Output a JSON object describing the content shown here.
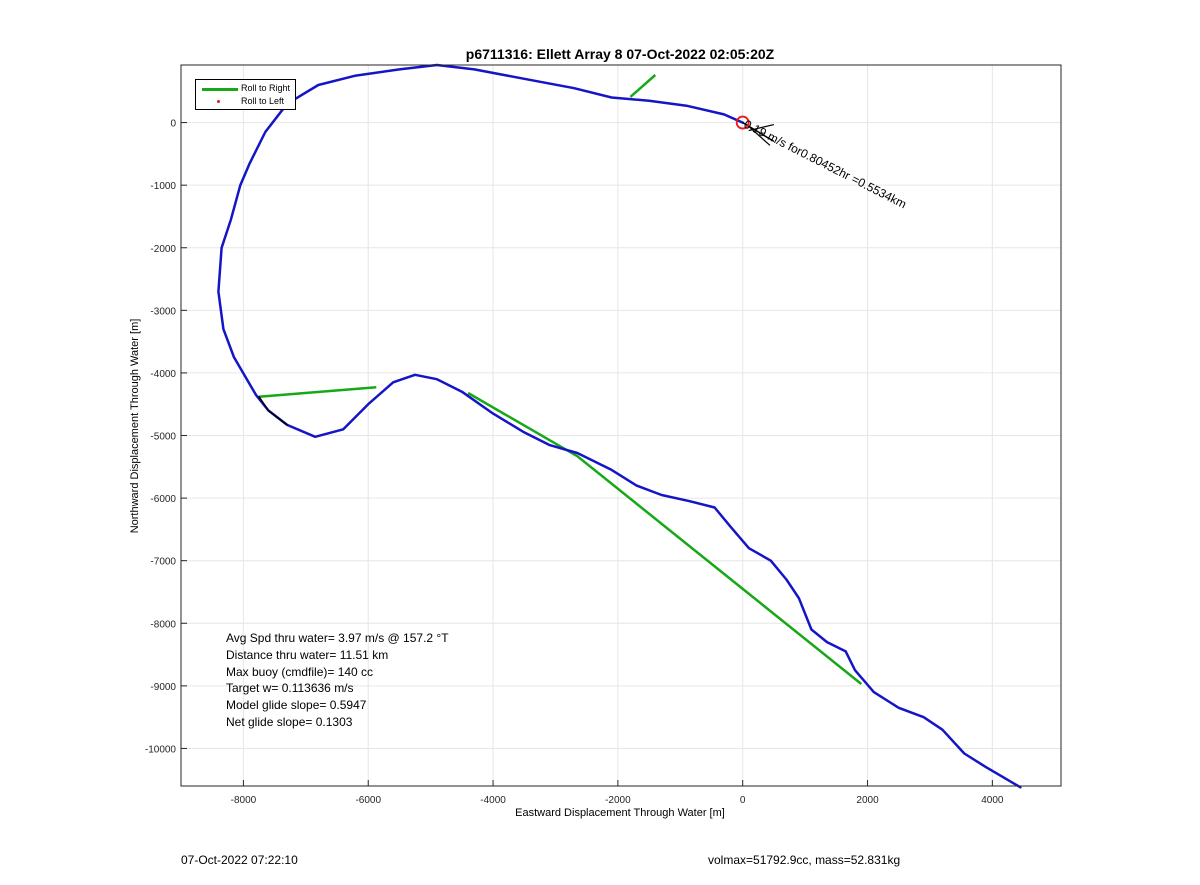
{
  "chart_data": {
    "type": "line",
    "title": "p6711316: Ellett Array 8 07-Oct-2022 02:05:20Z",
    "xlabel": "Eastward Displacement Through Water [m]",
    "ylabel": "Northward Displacement Through Water [m]",
    "xlim": [
      -9000,
      5100
    ],
    "ylim": [
      -10600,
      920
    ],
    "xticks": [
      -8000,
      -6000,
      -4000,
      -2000,
      0,
      2000,
      4000
    ],
    "xtick_labels": [
      "-8000",
      "-6000",
      "-4000",
      "-2000",
      "0",
      "2000",
      "4000"
    ],
    "yticks": [
      0,
      -1000,
      -2000,
      -3000,
      -4000,
      -5000,
      -6000,
      -7000,
      -8000,
      -9000,
      -10000
    ],
    "ytick_labels": [
      "0",
      "-1000",
      "-2000",
      "-3000",
      "-4000",
      "-5000",
      "-6000",
      "-7000",
      "-8000",
      "-9000",
      "-10000"
    ],
    "grid": true,
    "legend_position": "top-left",
    "legend": [
      "Roll to Right",
      "Roll to Left"
    ],
    "series": [
      {
        "name": "Roll to Right",
        "style": "line",
        "color": "#17a817",
        "segments": [
          [
            [
              -7750,
              -4380
            ],
            [
              -5870,
              -4230
            ]
          ],
          [
            [
              -4400,
              -4320
            ],
            [
              -2650,
              -5330
            ],
            [
              1900,
              -8970
            ]
          ],
          [
            [
              -1400,
              760
            ],
            [
              -1800,
              410
            ]
          ]
        ]
      },
      {
        "name": "Roll to Left",
        "style": "marker",
        "color": "#e81b1b",
        "points": []
      },
      {
        "name": "Glider track",
        "style": "line",
        "color": "#1515c8",
        "points": [
          [
            4450,
            -10620
          ],
          [
            3900,
            -10300
          ],
          [
            3550,
            -10080
          ],
          [
            3200,
            -9700
          ],
          [
            2900,
            -9500
          ],
          [
            2500,
            -9350
          ],
          [
            2100,
            -9100
          ],
          [
            1800,
            -8750
          ],
          [
            1650,
            -8450
          ],
          [
            1350,
            -8300
          ],
          [
            1100,
            -8100
          ],
          [
            900,
            -7600
          ],
          [
            700,
            -7300
          ],
          [
            450,
            -7000
          ],
          [
            100,
            -6800
          ],
          [
            -200,
            -6450
          ],
          [
            -450,
            -6150
          ],
          [
            -850,
            -6050
          ],
          [
            -1300,
            -5950
          ],
          [
            -1700,
            -5800
          ],
          [
            -2100,
            -5550
          ],
          [
            -2650,
            -5280
          ],
          [
            -3100,
            -5150
          ],
          [
            -3500,
            -4950
          ],
          [
            -4000,
            -4650
          ],
          [
            -4500,
            -4300
          ],
          [
            -4900,
            -4100
          ],
          [
            -5250,
            -4030
          ],
          [
            -5600,
            -4150
          ],
          [
            -6000,
            -4500
          ],
          [
            -6400,
            -4900
          ],
          [
            -6850,
            -5020
          ],
          [
            -7300,
            -4830
          ],
          [
            -7600,
            -4600
          ],
          [
            -7800,
            -4350
          ],
          [
            -8150,
            -3750
          ],
          [
            -8320,
            -3300
          ],
          [
            -8400,
            -2700
          ],
          [
            -8350,
            -2000
          ],
          [
            -8200,
            -1550
          ],
          [
            -8050,
            -1000
          ],
          [
            -7900,
            -650
          ],
          [
            -7650,
            -150
          ],
          [
            -7300,
            300
          ],
          [
            -6800,
            600
          ],
          [
            -6200,
            750
          ],
          [
            -5500,
            850
          ],
          [
            -4900,
            920
          ],
          [
            -4300,
            850
          ],
          [
            -3500,
            700
          ],
          [
            -2700,
            550
          ],
          [
            -2100,
            400
          ],
          [
            -1500,
            350
          ],
          [
            -900,
            270
          ],
          [
            -300,
            130
          ],
          [
            0,
            0
          ]
        ]
      },
      {
        "name": "Model track",
        "style": "line",
        "color": "#000000",
        "points": [
          [
            -7750,
            -4380
          ],
          [
            -7600,
            -4600
          ],
          [
            -7300,
            -4830
          ]
        ]
      }
    ],
    "markers": [
      {
        "shape": "circle",
        "color": "#e81b1b",
        "x": 0,
        "y": 0
      }
    ],
    "current_vector": {
      "color": "#000000",
      "from": [
        0,
        0
      ],
      "to": [
        500,
        -300
      ]
    },
    "annotation": "0.19 m/s for0.80452hr =0.5534km",
    "stats": [
      "Avg Spd thru water=  3.97 m/s @ 157.2 °T",
      "Distance thru water= 11.51 km",
      "Max buoy (cmdfile)= 140 cc",
      "Target w= 0.113636 m/s",
      "Model glide slope= 0.5947",
      "Net glide slope= 0.1303"
    ]
  },
  "footer": {
    "left": "07-Oct-2022 07:22:10",
    "right": "volmax=51792.9cc, mass=52.831kg"
  }
}
